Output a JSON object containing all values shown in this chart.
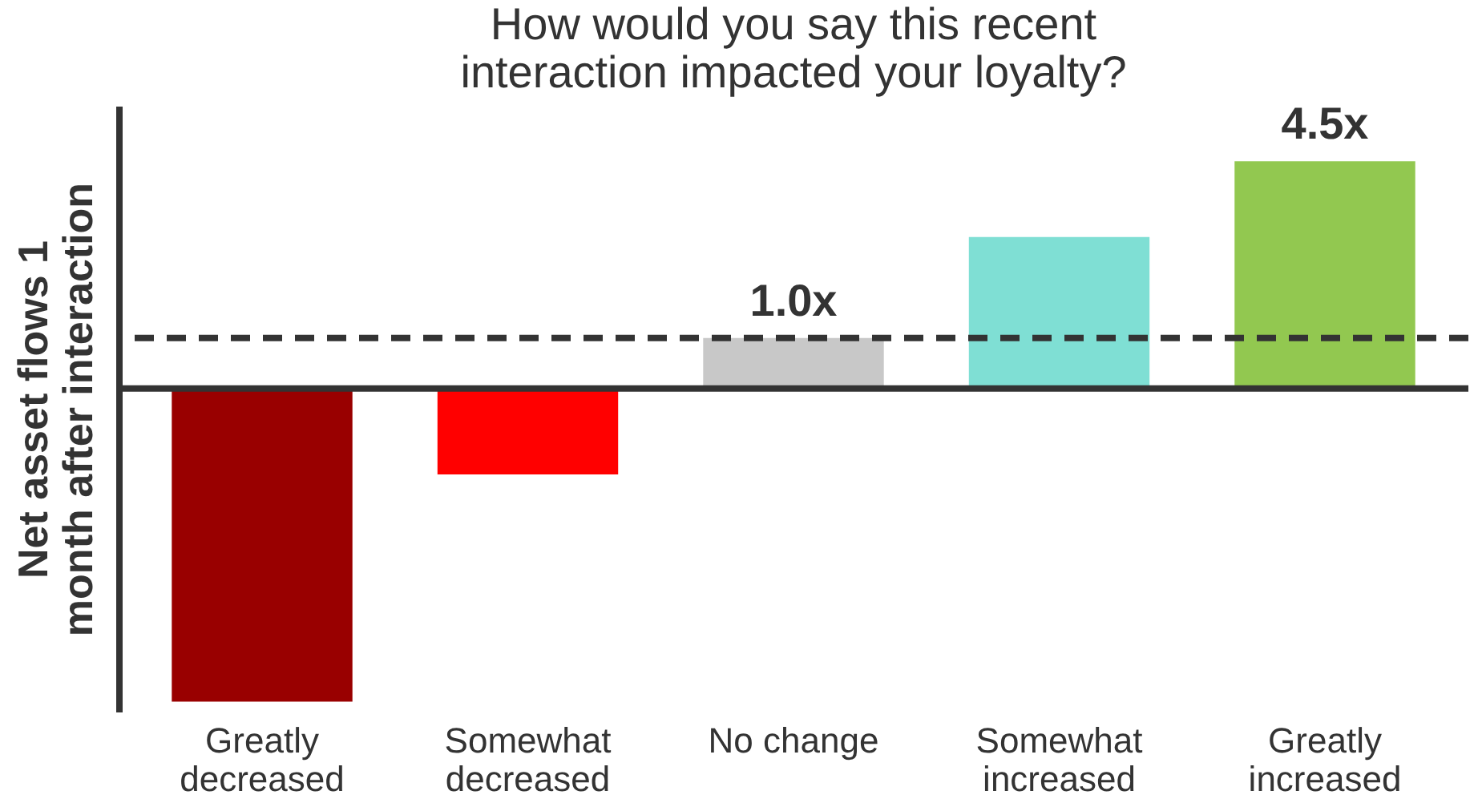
{
  "chart_data": {
    "type": "bar",
    "title": "How would you say this recent\ninteraction impacted your loyalty?",
    "ylabel": "Net asset flows 1\nmonth after interaction",
    "categories": [
      "Greatly\ndecreased",
      "Somewhat\ndecreased",
      "No change",
      "Somewhat\nincreased",
      "Greatly\nincreased"
    ],
    "values": [
      -6.2,
      -1.7,
      1.0,
      3.0,
      4.5
    ],
    "colors": [
      "#990000",
      "#ff0000",
      "#c8c8c8",
      "#7fdfd4",
      "#92c850"
    ],
    "value_labels": [
      null,
      null,
      "1.0x",
      null,
      "4.5x"
    ],
    "ylim": [
      -6.4,
      5.6
    ],
    "tick_labels": "x",
    "grid": false,
    "legend": false,
    "ref_lines": [
      {
        "axis": "y",
        "value": 1.0,
        "label": null,
        "color": "#333333",
        "line_style": "dashed"
      }
    ]
  }
}
